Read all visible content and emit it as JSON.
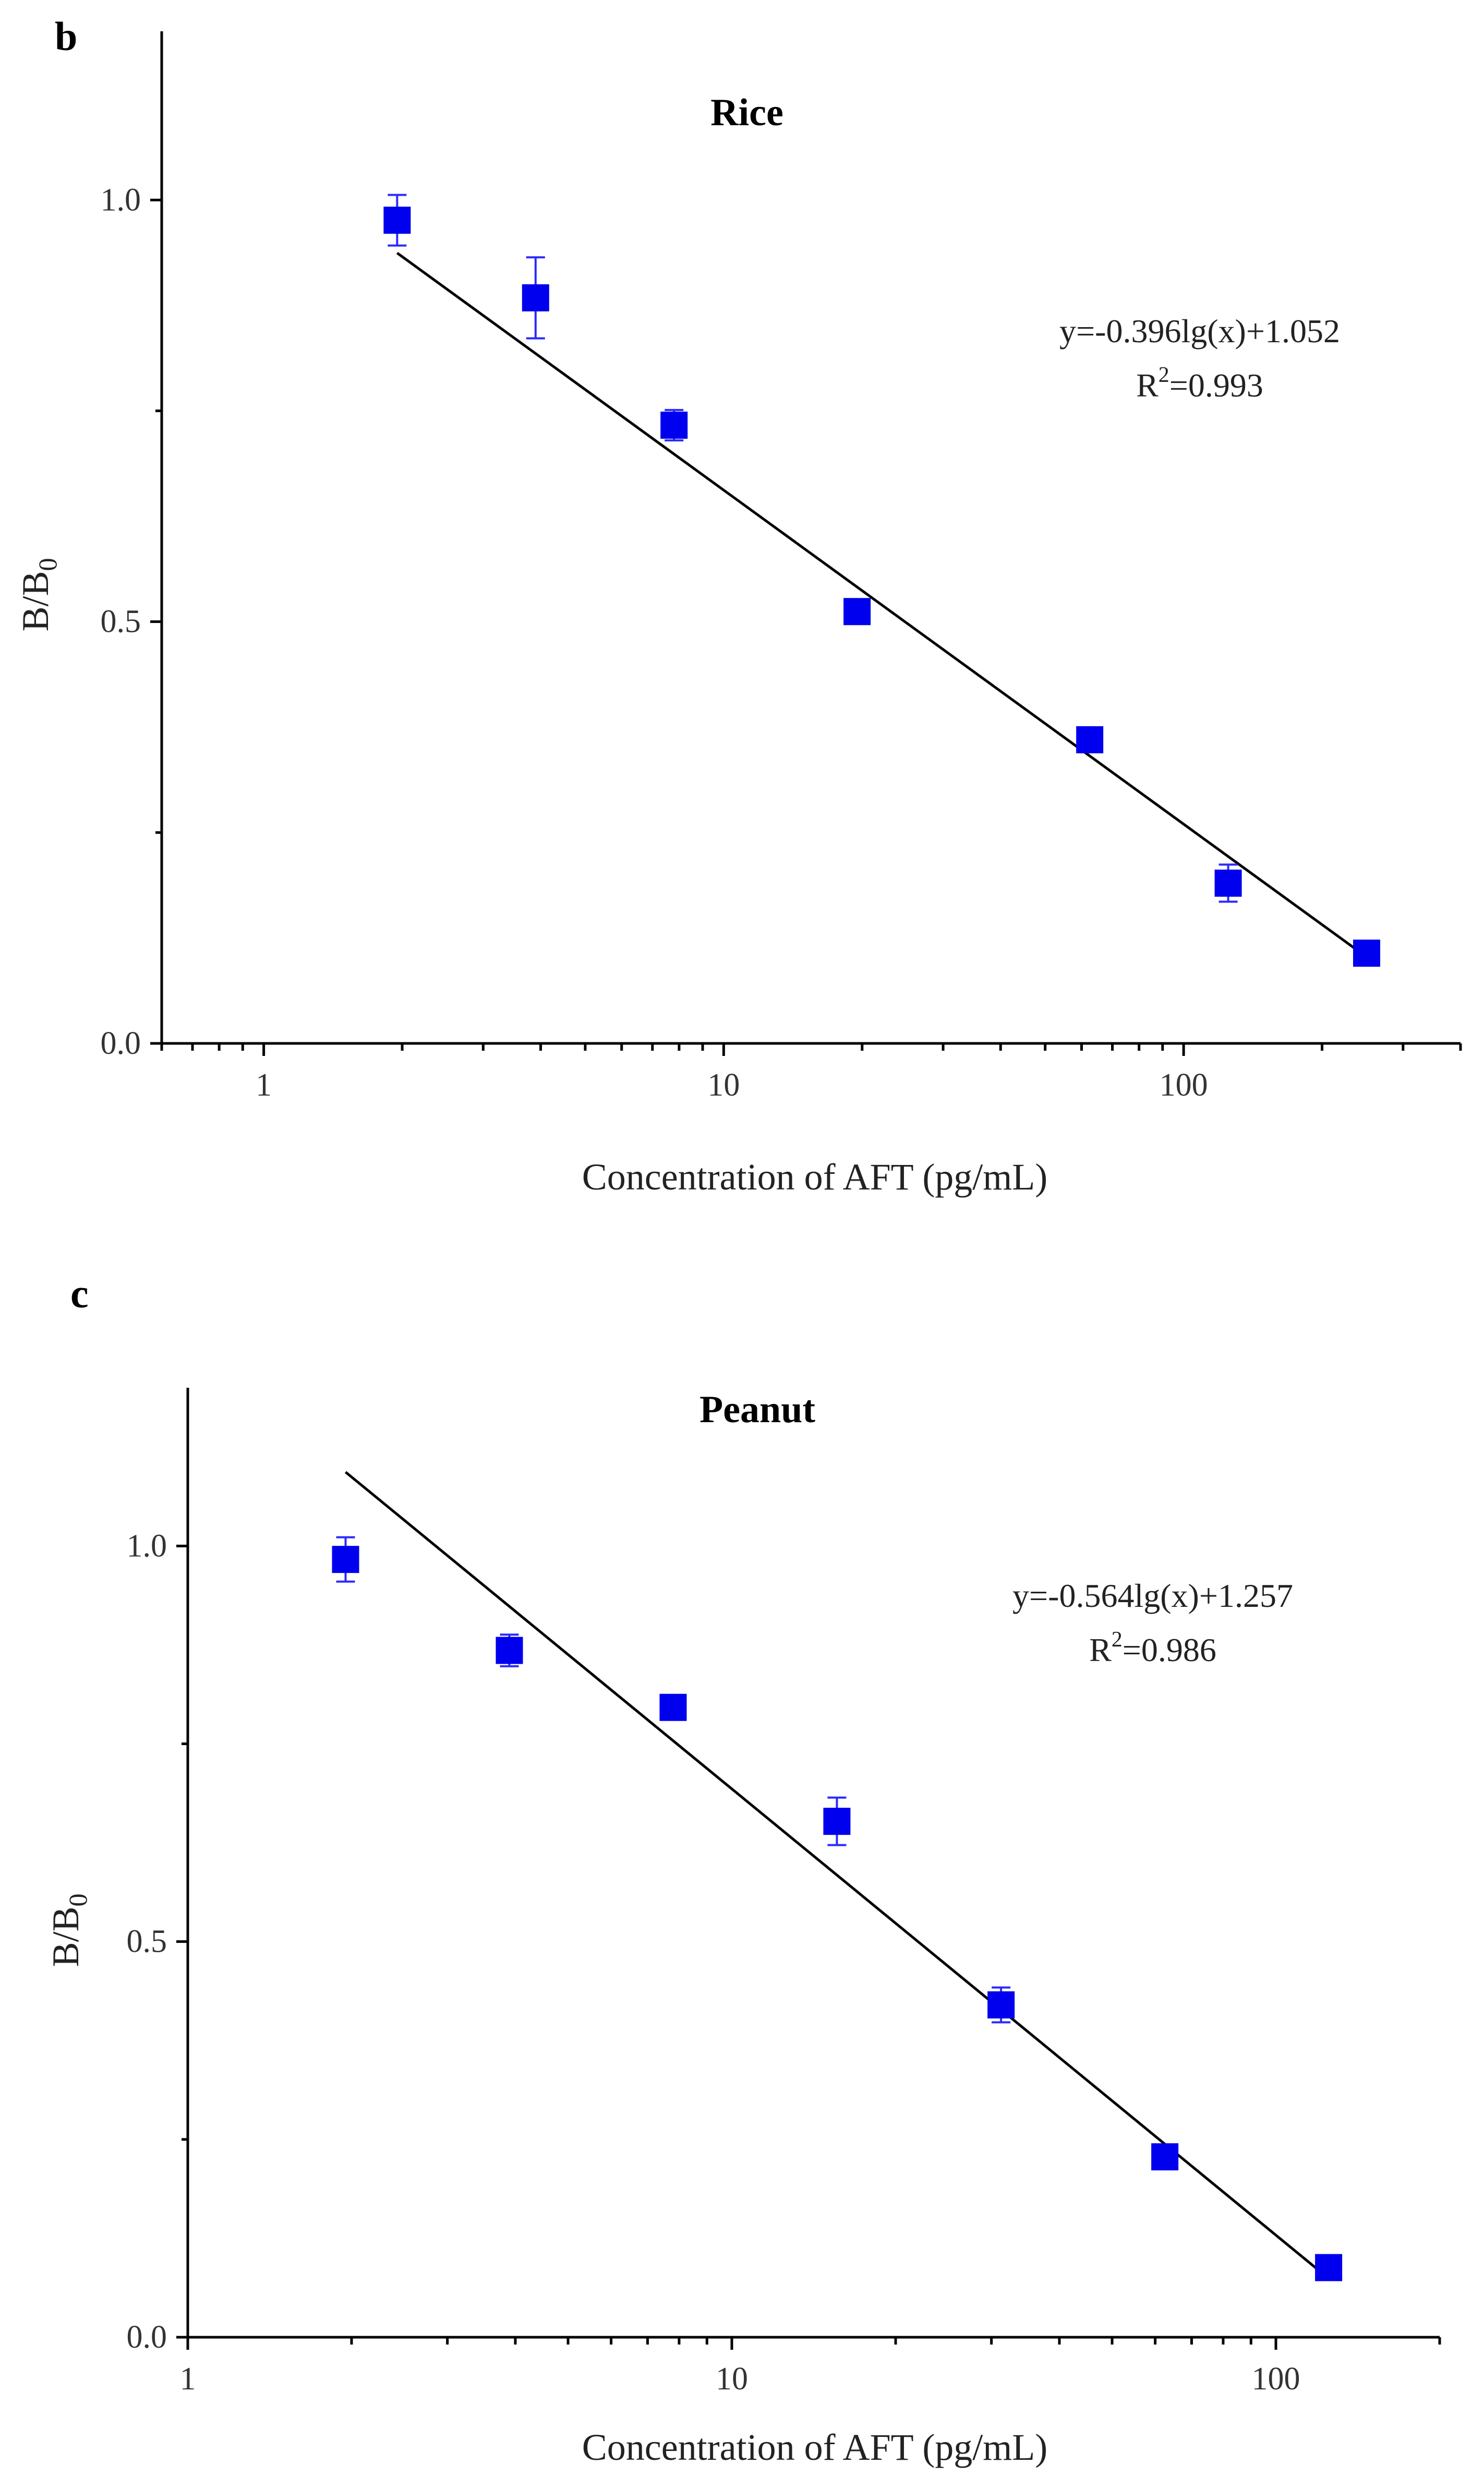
{
  "chart_data": [
    {
      "panel": "b",
      "type": "scatter",
      "title": "Rice",
      "xlabel": "Concentration of AFT (pg/mL)",
      "ylabel": "B/B0",
      "ylabel_main": "B/B",
      "ylabel_sub": "0",
      "xscale": "log",
      "xlim": [
        0.6,
        400
      ],
      "ylim": [
        0,
        1.2
      ],
      "xticks": [
        1,
        10,
        100
      ],
      "xticklabels": [
        "1",
        "10",
        "100"
      ],
      "yticks": [
        0.0,
        0.5,
        1.0
      ],
      "yticklabels": [
        "0.0",
        "0.5",
        "1.0"
      ],
      "series": [
        {
          "name": "Rice",
          "x": [
            1.95,
            3.9,
            7.8,
            19.5,
            62.5,
            125,
            250
          ],
          "y": [
            0.976,
            0.884,
            0.733,
            0.512,
            0.36,
            0.19,
            0.107
          ],
          "err": [
            0.03,
            0.048,
            0.018,
            0.01,
            0.01,
            0.022,
            0.008
          ]
        }
      ],
      "fit": {
        "slope": -0.396,
        "intercept": 1.052,
        "x_range": [
          1.95,
          250
        ]
      },
      "annotation": {
        "equation": "y=-0.396lg(x)+1.052",
        "r2_prefix": "R",
        "r2_sup": "2",
        "r2_value": "=0.993"
      }
    },
    {
      "panel": "c",
      "type": "scatter",
      "title": "Peanut",
      "xlabel": "Concentration of AFT (pg/mL)",
      "ylabel": "B/B0",
      "ylabel_main": "B/B",
      "ylabel_sub": "0",
      "xscale": "log",
      "xlim": [
        1,
        200
      ],
      "ylim": [
        0,
        1.2
      ],
      "xticks": [
        1,
        10,
        100
      ],
      "xticklabels": [
        "1",
        "10",
        "100"
      ],
      "yticks": [
        0.0,
        0.5,
        1.0
      ],
      "yticklabels": [
        "0.0",
        "0.5",
        "1.0"
      ],
      "series": [
        {
          "name": "Peanut",
          "x": [
            1.95,
            3.9,
            7.8,
            15.6,
            31.25,
            62.5,
            125
          ],
          "y": [
            0.983,
            0.868,
            0.796,
            0.652,
            0.42,
            0.228,
            0.088
          ],
          "err": [
            0.028,
            0.02,
            0.008,
            0.03,
            0.022,
            0.008,
            0.007
          ]
        }
      ],
      "fit": {
        "slope": -0.564,
        "intercept": 1.257,
        "x_range": [
          1.95,
          125
        ]
      },
      "annotation": {
        "equation": "y=-0.564lg(x)+1.257",
        "r2_prefix": "R",
        "r2_sup": "2",
        "r2_value": "=0.986"
      }
    }
  ]
}
